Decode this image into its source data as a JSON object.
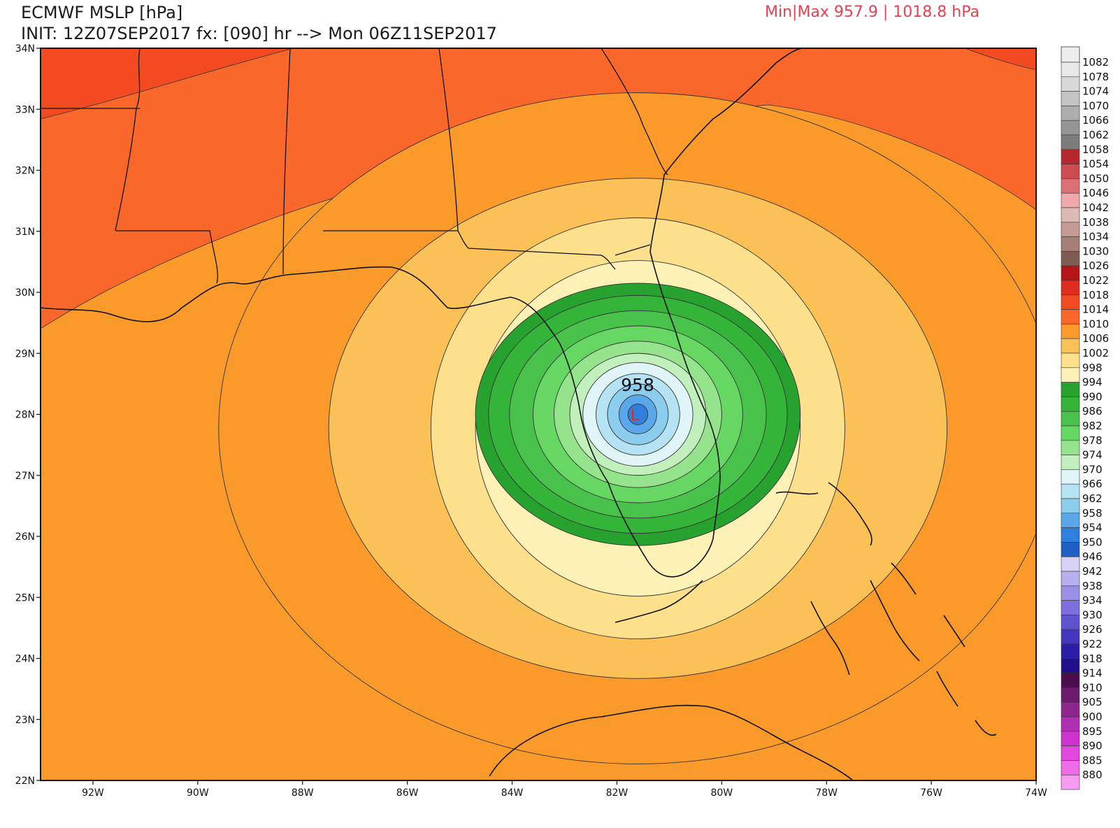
{
  "header": {
    "line1": "ECMWF MSLP [hPa]",
    "line2": "INIT: 12Z07SEP2017 fx: [090] hr --> Mon 06Z11SEP2017",
    "minmax": "Min|Max 957.9 | 1018.8 hPa"
  },
  "map": {
    "lat_labels": [
      "34N",
      "33N",
      "32N",
      "31N",
      "30N",
      "29N",
      "28N",
      "27N",
      "26N",
      "25N",
      "24N",
      "23N",
      "22N"
    ],
    "lon_labels": [
      "92W",
      "90W",
      "88W",
      "86W",
      "84W",
      "82W",
      "80W",
      "78W",
      "76W",
      "74W"
    ],
    "center_label": "958",
    "low_symbol": "L",
    "low_center": {
      "lon": -81.6,
      "lat": 28.0
    },
    "pressure_rings": [
      {
        "hpa": 1014,
        "color": "#f99a2a",
        "rx_deg": 8.0,
        "ry_deg": 5.5
      },
      {
        "hpa": 1010,
        "color": "#fbc056",
        "rx_deg": 5.9,
        "ry_deg": 4.1
      },
      {
        "hpa": 1006,
        "color": "#fde08c",
        "rx_deg": 3.95,
        "ry_deg": 3.45
      },
      {
        "hpa": 1002,
        "color": "#fef1b5",
        "rx_deg": 3.1,
        "ry_deg": 2.75
      },
      {
        "hpa": 998,
        "color": "#27a22f",
        "rx_deg": 3.1,
        "ry_deg": 2.15
      },
      {
        "hpa": 994,
        "color": "#35b43a",
        "rx_deg": 2.85,
        "ry_deg": 1.95
      },
      {
        "hpa": 990,
        "color": "#48c24b",
        "rx_deg": 2.45,
        "ry_deg": 1.7
      },
      {
        "hpa": 986,
        "color": "#66d762",
        "rx_deg": 2.0,
        "ry_deg": 1.45
      },
      {
        "hpa": 982,
        "color": "#95e38d",
        "rx_deg": 1.6,
        "ry_deg": 1.2
      },
      {
        "hpa": 978,
        "color": "#c2f0bd",
        "rx_deg": 1.3,
        "ry_deg": 1.0
      },
      {
        "hpa": 974,
        "color": "#dff5f7",
        "rx_deg": 1.05,
        "ry_deg": 0.85
      },
      {
        "hpa": 970,
        "color": "#b5e3f4",
        "rx_deg": 0.8,
        "ry_deg": 0.67
      },
      {
        "hpa": 966,
        "color": "#8ccdee",
        "rx_deg": 0.58,
        "ry_deg": 0.5
      },
      {
        "hpa": 962,
        "color": "#5aa8ea",
        "rx_deg": 0.36,
        "ry_deg": 0.32
      },
      {
        "hpa": 958,
        "color": "#2f7fde",
        "rx_deg": 0.19,
        "ry_deg": 0.17
      }
    ]
  },
  "colorbar": {
    "levels": [
      {
        "label": "1082",
        "color": "#e8e8e8"
      },
      {
        "label": "1078",
        "color": "#d8d8d8"
      },
      {
        "label": "1074",
        "color": "#c4c4c4"
      },
      {
        "label": "1070",
        "color": "#aeaeae"
      },
      {
        "label": "1066",
        "color": "#959595"
      },
      {
        "label": "1062",
        "color": "#7c7c7c"
      },
      {
        "label": "1058",
        "color": "#b7262b"
      },
      {
        "label": "1054",
        "color": "#cc4c52"
      },
      {
        "label": "1050",
        "color": "#db7074"
      },
      {
        "label": "1046",
        "color": "#f0a9ab"
      },
      {
        "label": "1042",
        "color": "#dcbab6"
      },
      {
        "label": "1038",
        "color": "#c59a93"
      },
      {
        "label": "1034",
        "color": "#a87f76"
      },
      {
        "label": "1030",
        "color": "#7e5c54"
      },
      {
        "label": "1026",
        "color": "#b7141a"
      },
      {
        "label": "1022",
        "color": "#e02b1f"
      },
      {
        "label": "1018",
        "color": "#f24b22"
      },
      {
        "label": "1014",
        "color": "#f9682a"
      },
      {
        "label": "1010",
        "color": "#f99a2a"
      },
      {
        "label": "1006",
        "color": "#fbc056"
      },
      {
        "label": "1002",
        "color": "#fde08c"
      },
      {
        "label": "998",
        "color": "#fef1b5"
      },
      {
        "label": "994",
        "color": "#27a22f"
      },
      {
        "label": "990",
        "color": "#35b43a"
      },
      {
        "label": "986",
        "color": "#48c24b"
      },
      {
        "label": "982",
        "color": "#66d762"
      },
      {
        "label": "978",
        "color": "#95e38d"
      },
      {
        "label": "974",
        "color": "#c2f0bd"
      },
      {
        "label": "970",
        "color": "#dff5f7"
      },
      {
        "label": "966",
        "color": "#b5e3f4"
      },
      {
        "label": "962",
        "color": "#8ccdee"
      },
      {
        "label": "958",
        "color": "#5aa8ea"
      },
      {
        "label": "954",
        "color": "#2f7fde"
      },
      {
        "label": "950",
        "color": "#1f5fc4"
      },
      {
        "label": "946",
        "color": "#d6d2f5"
      },
      {
        "label": "942",
        "color": "#b7b0ee"
      },
      {
        "label": "938",
        "color": "#9a90e6"
      },
      {
        "label": "934",
        "color": "#7c70dc"
      },
      {
        "label": "930",
        "color": "#5f52cf"
      },
      {
        "label": "926",
        "color": "#4436c0"
      },
      {
        "label": "922",
        "color": "#2c1ea8"
      },
      {
        "label": "918",
        "color": "#21108a"
      },
      {
        "label": "914",
        "color": "#4c0c4e"
      },
      {
        "label": "910",
        "color": "#6e1a6e"
      },
      {
        "label": "905",
        "color": "#8e2690"
      },
      {
        "label": "900",
        "color": "#b02fb2"
      },
      {
        "label": "895",
        "color": "#cf33cf"
      },
      {
        "label": "890",
        "color": "#e248dd"
      },
      {
        "label": "885",
        "color": "#ee6ce8"
      },
      {
        "label": "880",
        "color": "#f79af2"
      }
    ]
  }
}
